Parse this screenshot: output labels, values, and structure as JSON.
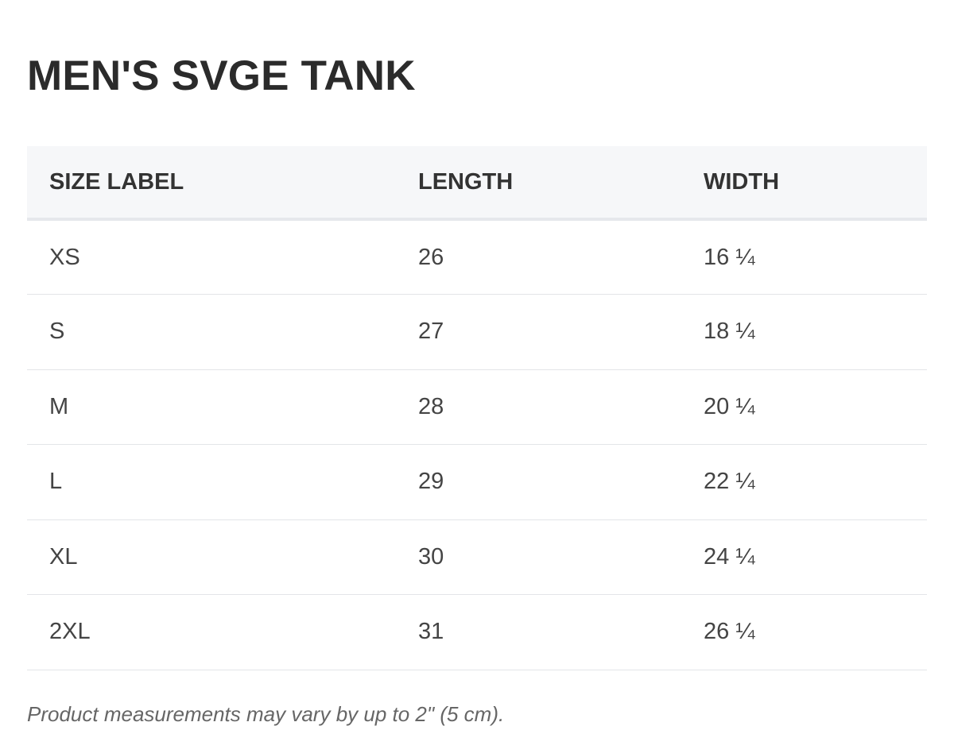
{
  "title": "MEN'S SVGE TANK",
  "table": {
    "headers": [
      "SIZE LABEL",
      "LENGTH",
      "WIDTH"
    ],
    "rows": [
      [
        "XS",
        "26",
        "16 ¼"
      ],
      [
        "S",
        "27",
        "18 ¼"
      ],
      [
        "M",
        "28",
        "20 ¼"
      ],
      [
        "L",
        "29",
        "22 ¼"
      ],
      [
        "XL",
        "30",
        "24 ¼"
      ],
      [
        "2XL",
        "31",
        "26 ¼"
      ]
    ]
  },
  "note": "Product measurements may vary by up to 2\" (5 cm).",
  "colors": {
    "text": "#333333",
    "header_bg": "#f6f7f9",
    "row_border": "#e3e5e8",
    "note": "#666666"
  }
}
